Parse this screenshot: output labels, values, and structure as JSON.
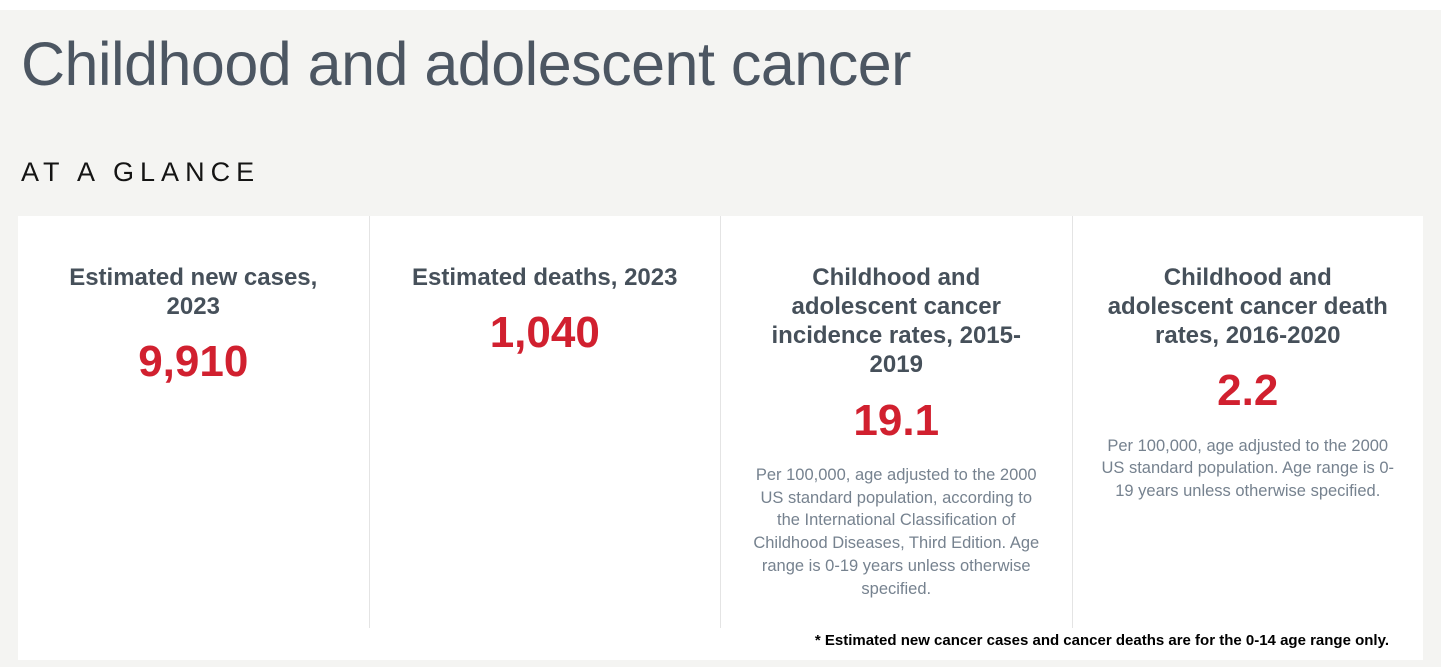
{
  "header": {
    "title": "Childhood and adolescent cancer",
    "section_label": "AT A GLANCE"
  },
  "cards": [
    {
      "heading": "Estimated new cases, 2023",
      "value": "9,910",
      "description": ""
    },
    {
      "heading": "Estimated deaths, 2023",
      "value": "1,040",
      "description": ""
    },
    {
      "heading": "Childhood and adolescent cancer incidence rates, 2015-2019",
      "value": "19.1",
      "description": "Per 100,000, age adjusted to the 2000 US standard population, according to the International Classification of Childhood Diseases, Third Edition. Age range is 0-19 years unless otherwise specified."
    },
    {
      "heading": "Childhood and adolescent cancer death rates, 2016-2020",
      "value": "2.2",
      "description": "Per 100,000, age adjusted to the 2000 US standard population. Age range is 0-19 years unless otherwise specified."
    }
  ],
  "footnote": "* Estimated new cancer cases and cancer deaths are for the 0-14 age range only.",
  "colors": {
    "accent_red": "#d1202f",
    "title_slate": "#4c5662",
    "card_heading_slate": "#46505a",
    "description_gray_blue": "#76828f",
    "page_background": "#f4f4f2",
    "panel_background": "#ffffff",
    "card_divider": "#e4e4e4",
    "footnote_black": "#000000"
  }
}
